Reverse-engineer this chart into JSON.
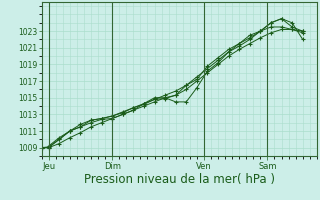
{
  "bg_color": "#cceee8",
  "plot_bg_color": "#cceee8",
  "grid_color": "#aaddcc",
  "line_color": "#1a5c1a",
  "marker_color": "#1a5c1a",
  "xlabel": "Pression niveau de la mer( hPa )",
  "xlabel_fontsize": 8.5,
  "xlim": [
    0,
    78
  ],
  "ylim": [
    1008.0,
    1026.5
  ],
  "yticks": [
    1009,
    1011,
    1013,
    1015,
    1017,
    1019,
    1021,
    1023
  ],
  "xtick_labels": [
    "Jeu",
    "Dim",
    "Ven",
    "Sam"
  ],
  "xtick_positions": [
    2,
    20,
    46,
    64
  ],
  "day_lines": [
    2,
    20,
    46,
    64
  ],
  "series1": {
    "x": [
      0,
      2,
      5,
      8,
      11,
      14,
      17,
      20,
      23,
      26,
      29,
      32,
      35,
      38,
      41,
      44,
      47,
      50,
      53,
      56,
      59,
      62,
      65,
      68,
      71,
      74
    ],
    "y": [
      1009,
      1009,
      1009.5,
      1010.2,
      1010.8,
      1011.5,
      1012.0,
      1012.5,
      1013.0,
      1013.5,
      1014.0,
      1014.5,
      1015.0,
      1015.3,
      1016.0,
      1017.0,
      1018.0,
      1019.0,
      1020.0,
      1020.8,
      1021.5,
      1022.2,
      1022.8,
      1023.2,
      1023.2,
      1023.0
    ]
  },
  "series2": {
    "x": [
      0,
      2,
      5,
      8,
      11,
      14,
      17,
      20,
      23,
      26,
      29,
      32,
      35,
      38,
      41,
      44,
      47,
      50,
      53,
      56,
      59,
      62,
      65,
      68,
      71,
      74
    ],
    "y": [
      1009,
      1009.1,
      1010.0,
      1011.0,
      1011.5,
      1012.0,
      1012.4,
      1012.5,
      1013.0,
      1013.5,
      1014.3,
      1015.0,
      1015.0,
      1014.5,
      1014.5,
      1016.2,
      1018.2,
      1019.2,
      1020.5,
      1021.5,
      1022.5,
      1023.0,
      1024.0,
      1024.5,
      1024.0,
      1022.0
    ]
  },
  "series3": {
    "x": [
      0,
      2,
      5,
      8,
      11,
      14,
      17,
      20,
      23,
      26,
      29,
      32,
      35,
      38,
      41,
      44,
      47,
      50,
      53,
      56,
      59,
      62,
      65,
      68,
      71,
      74
    ],
    "y": [
      1009,
      1009,
      1010.0,
      1011.0,
      1011.5,
      1012.3,
      1012.5,
      1012.8,
      1013.2,
      1013.8,
      1014.2,
      1014.8,
      1014.9,
      1015.3,
      1016.5,
      1017.5,
      1018.5,
      1019.5,
      1020.5,
      1021.2,
      1022.0,
      1023.0,
      1024.0,
      1024.5,
      1023.5,
      1023.0
    ]
  },
  "series4": {
    "x": [
      2,
      5,
      8,
      11,
      14,
      17,
      20,
      23,
      26,
      29,
      32,
      35,
      38,
      41,
      44,
      47,
      50,
      53,
      56,
      59,
      62,
      65,
      68,
      71,
      74
    ],
    "y": [
      1009.2,
      1010.2,
      1011.0,
      1011.8,
      1012.3,
      1012.5,
      1012.8,
      1013.3,
      1013.8,
      1014.3,
      1014.8,
      1015.3,
      1015.8,
      1016.5,
      1017.2,
      1018.8,
      1019.8,
      1020.8,
      1021.5,
      1022.2,
      1023.0,
      1023.5,
      1023.5,
      1023.2,
      1022.8
    ]
  }
}
